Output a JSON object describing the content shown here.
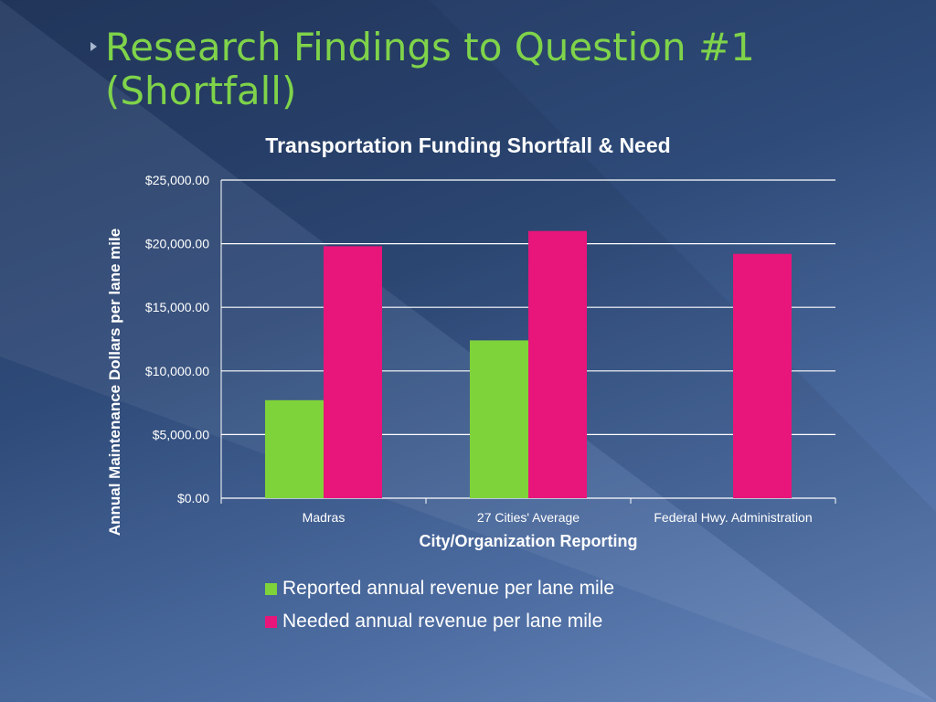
{
  "slide": {
    "title": "Research Findings to Question #1\n(Shortfall)"
  },
  "colors": {
    "title_green": "#7fd34a",
    "reported": "#7ed33a",
    "needed": "#e8157a",
    "gridline": "#ffffff"
  },
  "chart_data": {
    "type": "bar",
    "title": "Transportation Funding Shortfall & Need",
    "xlabel": "City/Organization Reporting",
    "ylabel": "Annual Maintenance Dollars per lane mile",
    "categories": [
      "Madras",
      "27 Cities' Average",
      "Federal Hwy. Administration"
    ],
    "series": [
      {
        "name": "Reported annual revenue per lane mile",
        "color": "#7ed33a",
        "values": [
          7700,
          12400,
          null
        ]
      },
      {
        "name": "Needed annual revenue per lane mile",
        "color": "#e8157a",
        "values": [
          19800,
          21000,
          19200
        ]
      }
    ],
    "ylim": [
      0,
      25000
    ],
    "yticks": [
      "$0.00",
      "$5,000.00",
      "$10,000.00",
      "$15,000.00",
      "$20,000.00",
      "$25,000.00"
    ],
    "ytick_values": [
      0,
      5000,
      10000,
      15000,
      20000,
      25000
    ],
    "grid": true,
    "legend_position": "bottom"
  }
}
